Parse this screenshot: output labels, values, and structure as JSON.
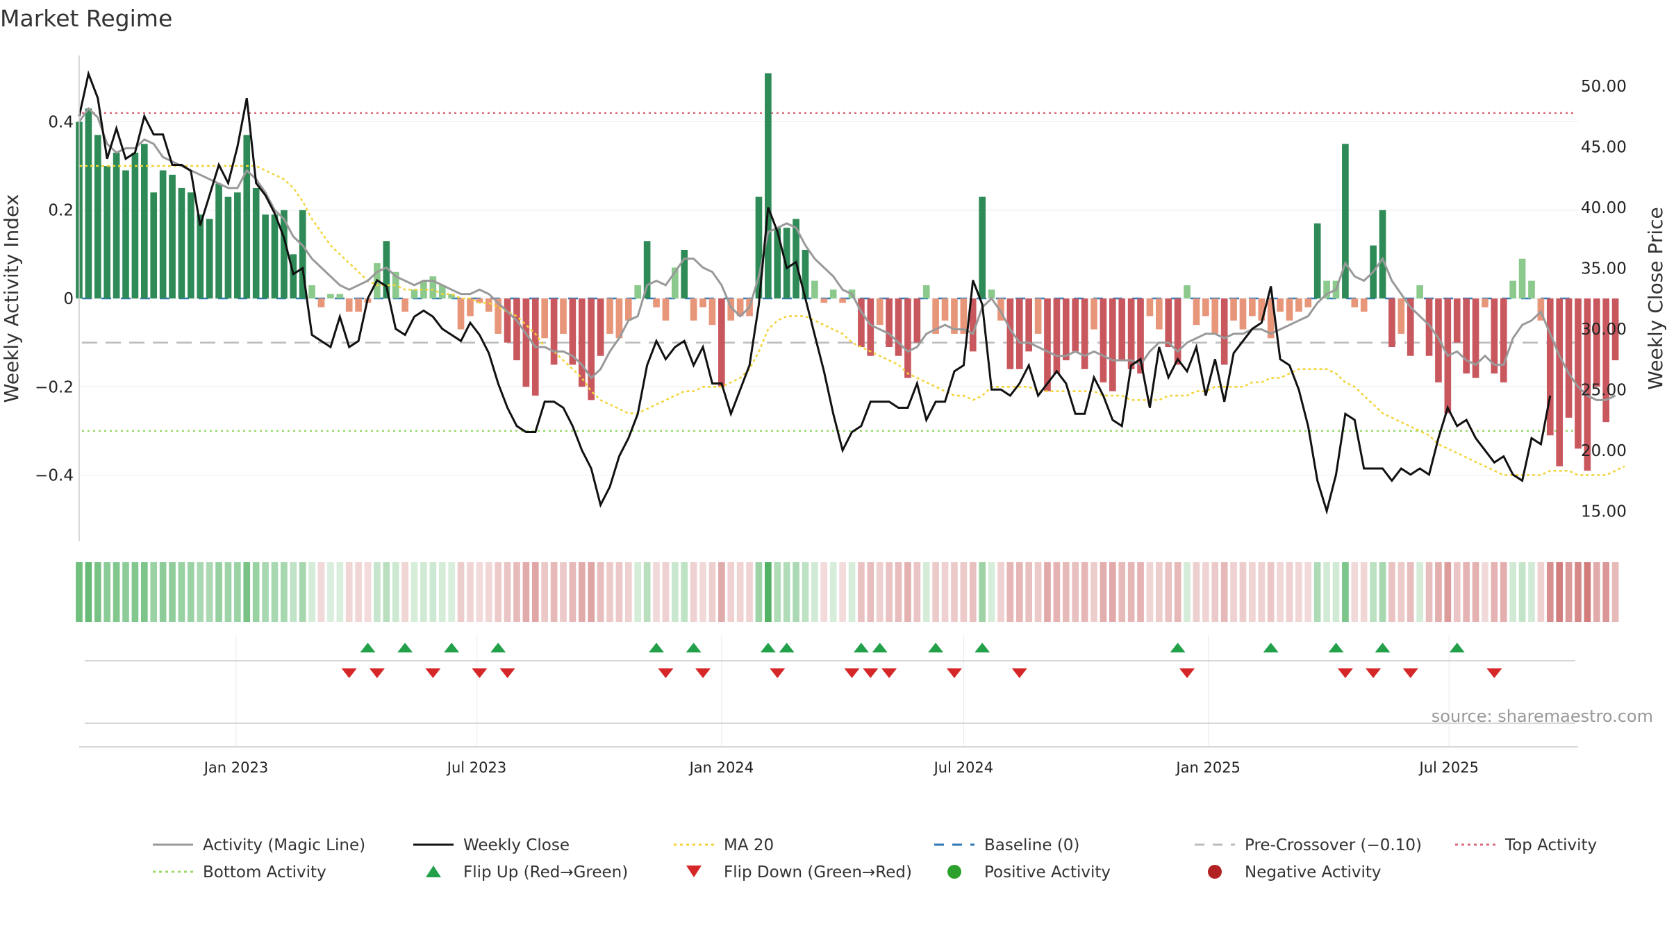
{
  "title": "Market Regime",
  "source": "source: sharemaestro.com",
  "colors": {
    "pos_strong": "#2e8b57",
    "pos_weak": "#8cc98c",
    "neg_strong": "#c9575e",
    "neg_weak": "#e8967a",
    "magic_line": "#999999",
    "close": "#111111",
    "ma20": "#f2d43a",
    "baseline": "#2f77b4",
    "precross": "#bbbbbb",
    "top": "#de6b7c",
    "bottom": "#9ad96b",
    "flip_up": "#22a04a",
    "flip_down": "#d62728",
    "pos_dot": "#2ca02c",
    "neg_dot": "#b22222"
  },
  "legend": [
    {
      "label": "Activity (Magic Line)",
      "style": "line",
      "color": "#999999"
    },
    {
      "label": "Weekly Close",
      "style": "line",
      "color": "#111111"
    },
    {
      "label": "MA 20",
      "style": "dotted",
      "color": "#f2d43a"
    },
    {
      "label": "Baseline (0)",
      "style": "dashed",
      "color": "#2f77b4"
    },
    {
      "label": "Pre-Crossover (−0.10)",
      "style": "dashed",
      "color": "#bbbbbb"
    },
    {
      "label": "Top Activity",
      "style": "dotted",
      "color": "#de6b7c"
    },
    {
      "label": "Bottom Activity",
      "style": "dotted",
      "color": "#9ad96b"
    },
    {
      "label": "Flip Up (Red→Green)",
      "style": "tri-up",
      "color": "#22a04a"
    },
    {
      "label": "Flip Down (Green→Red)",
      "style": "tri-down",
      "color": "#d62728"
    },
    {
      "label": "Positive Activity",
      "style": "dot",
      "color": "#2ca02c"
    },
    {
      "label": "Negative Activity",
      "style": "dot",
      "color": "#b22222"
    }
  ],
  "chart_data": {
    "type": "bar",
    "title": "Market Regime",
    "xlabel": "",
    "ylabel": "Weekly Activity Index",
    "y2label": "Weekly Close Price",
    "ylim": [
      -0.55,
      0.55
    ],
    "y2lim": [
      12.5,
      52.5
    ],
    "yticks": [
      {
        "v": 0.4,
        "label": "0.4"
      },
      {
        "v": 0.2,
        "label": "0.2"
      },
      {
        "v": 0,
        "label": "0"
      },
      {
        "v": -0.2,
        "label": "−0.2"
      },
      {
        "v": -0.4,
        "label": "−0.4"
      }
    ],
    "y2ticks": [
      "50.00",
      "45.00",
      "40.00",
      "35.00",
      "30.00",
      "25.00",
      "20.00",
      "15.00"
    ],
    "x_start": "2022-09-05",
    "x_end": "2025-10-06",
    "xticks": [
      {
        "date": "2023-01-01",
        "label": "Jan 2023"
      },
      {
        "date": "2023-07-01",
        "label": "Jul 2023"
      },
      {
        "date": "2024-01-01",
        "label": "Jan 2024"
      },
      {
        "date": "2024-07-01",
        "label": "Jul 2024"
      },
      {
        "date": "2025-01-01",
        "label": "Jan 2025"
      },
      {
        "date": "2025-07-01",
        "label": "Jul 2025"
      }
    ],
    "first_week": "2022-09-05",
    "week_step_days": 7,
    "grid": true,
    "legend_position": "bottom",
    "activity": [
      0.4,
      0.43,
      0.37,
      0.3,
      0.33,
      0.29,
      0.33,
      0.35,
      0.24,
      0.29,
      0.28,
      0.25,
      0.24,
      0.19,
      0.18,
      0.26,
      0.23,
      0.24,
      0.37,
      0.25,
      0.19,
      0.19,
      0.2,
      0.1,
      0.2,
      0.03,
      -0.02,
      0.01,
      0.01,
      -0.03,
      -0.03,
      -0.01,
      0.08,
      0.13,
      0.06,
      -0.03,
      0.02,
      0.04,
      0.05,
      0.03,
      0.01,
      -0.07,
      -0.04,
      -0.01,
      -0.03,
      -0.08,
      -0.1,
      -0.14,
      -0.2,
      -0.22,
      -0.09,
      -0.15,
      -0.08,
      -0.15,
      -0.2,
      -0.23,
      -0.13,
      -0.08,
      -0.09,
      -0.05,
      0.03,
      0.13,
      -0.02,
      -0.05,
      0.07,
      0.11,
      -0.05,
      -0.02,
      -0.06,
      -0.2,
      -0.05,
      -0.04,
      -0.04,
      0.23,
      0.51,
      0.16,
      0.16,
      0.18,
      0.11,
      0.04,
      -0.01,
      0.02,
      -0.01,
      0.02,
      -0.11,
      -0.13,
      -0.06,
      -0.11,
      -0.13,
      -0.18,
      -0.1,
      0.03,
      -0.08,
      -0.05,
      -0.08,
      -0.08,
      -0.12,
      0.23,
      0.02,
      -0.05,
      -0.16,
      -0.16,
      -0.12,
      -0.08,
      -0.21,
      -0.17,
      -0.14,
      -0.12,
      -0.16,
      -0.07,
      -0.19,
      -0.21,
      -0.14,
      -0.16,
      -0.17,
      -0.04,
      -0.07,
      -0.11,
      -0.15,
      0.03,
      -0.06,
      -0.04,
      -0.08,
      -0.15,
      -0.05,
      -0.07,
      -0.04,
      -0.05,
      -0.09,
      -0.03,
      -0.05,
      -0.03,
      -0.02,
      0.17,
      0.04,
      0.04,
      0.35,
      -0.02,
      -0.03,
      0.12,
      0.2,
      -0.11,
      -0.08,
      -0.13,
      0.03,
      -0.13,
      -0.19,
      -0.26,
      -0.1,
      -0.17,
      -0.18,
      -0.02,
      -0.17,
      -0.19,
      0.04,
      0.09,
      0.04,
      -0.05,
      -0.31,
      -0.38,
      -0.27,
      -0.34,
      -0.39,
      -0.2,
      -0.28,
      -0.14
    ],
    "close": [
      47.5,
      51,
      49,
      44,
      46.5,
      44,
      44.5,
      47.5,
      46,
      46,
      43.5,
      43.5,
      43,
      38.5,
      41,
      43.5,
      42,
      45,
      49,
      42,
      41,
      39.5,
      37.5,
      34.5,
      35,
      29.5,
      29,
      28.5,
      31,
      28.5,
      29,
      32.5,
      34,
      33.5,
      30,
      29.5,
      31,
      31.5,
      31,
      30,
      29.5,
      29,
      30.5,
      29.5,
      28,
      25.5,
      23.5,
      22,
      21.5,
      21.5,
      24,
      24,
      23.5,
      22,
      20,
      18.5,
      15.5,
      17,
      19.5,
      21,
      23,
      27,
      29,
      27.5,
      28.5,
      29,
      27,
      28.5,
      25.5,
      25.5,
      23,
      25,
      27,
      32,
      40,
      38,
      35,
      35.5,
      32.5,
      29.5,
      26.5,
      23,
      20,
      21.5,
      22,
      24,
      24,
      24,
      23.5,
      23.5,
      25.5,
      22.5,
      24,
      24,
      26.5,
      27,
      34,
      32,
      25,
      25,
      24.5,
      25.5,
      27,
      24.5,
      25.5,
      26.5,
      25.5,
      23,
      23,
      26,
      24.5,
      22.5,
      22,
      27,
      27.5,
      23.5,
      28.5,
      26,
      27.5,
      26.5,
      28.5,
      24.5,
      27.5,
      24,
      28,
      29,
      30,
      30.5,
      33.5,
      27.5,
      27,
      25,
      22,
      17.5,
      15,
      18,
      23,
      22.5,
      18.5,
      18.5,
      18.5,
      17.5,
      18.5,
      18,
      18.5,
      18,
      21,
      23.5,
      22,
      22.5,
      21,
      20,
      19,
      19.5,
      18,
      17.5,
      21,
      20.5,
      24.5
    ],
    "magic_line": [
      0.4,
      0.43,
      0.41,
      0.35,
      0.33,
      0.34,
      0.34,
      0.36,
      0.35,
      0.32,
      0.31,
      0.3,
      0.29,
      0.28,
      0.27,
      0.26,
      0.25,
      0.25,
      0.29,
      0.27,
      0.24,
      0.2,
      0.18,
      0.14,
      0.12,
      0.09,
      0.07,
      0.05,
      0.03,
      0.02,
      0.03,
      0.04,
      0.06,
      0.07,
      0.05,
      0.04,
      0.03,
      0.04,
      0.04,
      0.03,
      0.02,
      0.01,
      0.01,
      0.02,
      0.01,
      -0.01,
      -0.03,
      -0.05,
      -0.08,
      -0.11,
      -0.11,
      -0.12,
      -0.12,
      -0.13,
      -0.15,
      -0.18,
      -0.16,
      -0.12,
      -0.09,
      -0.05,
      -0.04,
      0.03,
      0.04,
      0.03,
      0.06,
      0.09,
      0.09,
      0.07,
      0.06,
      0.03,
      -0.02,
      -0.04,
      -0.02,
      0.05,
      0.15,
      0.16,
      0.17,
      0.16,
      0.12,
      0.09,
      0.07,
      0.05,
      0.02,
      0.01,
      -0.03,
      -0.06,
      -0.07,
      -0.08,
      -0.1,
      -0.12,
      -0.11,
      -0.08,
      -0.07,
      -0.06,
      -0.07,
      -0.07,
      -0.08,
      -0.02,
      0.0,
      -0.03,
      -0.07,
      -0.1,
      -0.1,
      -0.11,
      -0.12,
      -0.13,
      -0.13,
      -0.12,
      -0.13,
      -0.12,
      -0.13,
      -0.14,
      -0.14,
      -0.14,
      -0.15,
      -0.12,
      -0.1,
      -0.1,
      -0.12,
      -0.1,
      -0.09,
      -0.08,
      -0.08,
      -0.09,
      -0.08,
      -0.08,
      -0.07,
      -0.07,
      -0.08,
      -0.07,
      -0.06,
      -0.05,
      -0.04,
      -0.01,
      0.01,
      0.02,
      0.08,
      0.05,
      0.04,
      0.06,
      0.09,
      0.04,
      0.01,
      -0.02,
      -0.04,
      -0.06,
      -0.09,
      -0.13,
      -0.12,
      -0.14,
      -0.15,
      -0.13,
      -0.15,
      -0.15,
      -0.09,
      -0.06,
      -0.05,
      -0.03,
      -0.08,
      -0.13,
      -0.17,
      -0.2,
      -0.22,
      -0.23,
      -0.23,
      -0.22
    ],
    "ma20": [
      0.3,
      0.3,
      0.3,
      0.3,
      0.3,
      0.3,
      0.3,
      0.3,
      0.3,
      0.3,
      0.3,
      0.3,
      0.3,
      0.3,
      0.3,
      0.3,
      0.3,
      0.3,
      0.3,
      0.3,
      0.29,
      0.28,
      0.27,
      0.25,
      0.22,
      0.18,
      0.15,
      0.12,
      0.1,
      0.08,
      0.06,
      0.04,
      0.03,
      0.03,
      0.03,
      0.02,
      0.02,
      0.02,
      0.02,
      0.01,
      0.01,
      0.0,
      0.0,
      -0.01,
      -0.01,
      -0.02,
      -0.03,
      -0.04,
      -0.06,
      -0.08,
      -0.11,
      -0.12,
      -0.14,
      -0.16,
      -0.18,
      -0.21,
      -0.23,
      -0.24,
      -0.25,
      -0.26,
      -0.26,
      -0.25,
      -0.24,
      -0.23,
      -0.22,
      -0.21,
      -0.21,
      -0.2,
      -0.2,
      -0.2,
      -0.19,
      -0.18,
      -0.16,
      -0.12,
      -0.07,
      -0.05,
      -0.04,
      -0.04,
      -0.04,
      -0.05,
      -0.06,
      -0.07,
      -0.08,
      -0.1,
      -0.11,
      -0.12,
      -0.13,
      -0.14,
      -0.15,
      -0.17,
      -0.18,
      -0.19,
      -0.2,
      -0.21,
      -0.22,
      -0.22,
      -0.23,
      -0.22,
      -0.2,
      -0.2,
      -0.2,
      -0.2,
      -0.2,
      -0.21,
      -0.21,
      -0.21,
      -0.21,
      -0.21,
      -0.21,
      -0.21,
      -0.22,
      -0.22,
      -0.22,
      -0.23,
      -0.23,
      -0.23,
      -0.23,
      -0.22,
      -0.22,
      -0.22,
      -0.21,
      -0.21,
      -0.2,
      -0.2,
      -0.2,
      -0.2,
      -0.19,
      -0.19,
      -0.18,
      -0.18,
      -0.17,
      -0.16,
      -0.16,
      -0.16,
      -0.16,
      -0.17,
      -0.19,
      -0.2,
      -0.22,
      -0.24,
      -0.26,
      -0.27,
      -0.28,
      -0.29,
      -0.3,
      -0.31,
      -0.33,
      -0.34,
      -0.35,
      -0.36,
      -0.37,
      -0.38,
      -0.39,
      -0.4,
      -0.4,
      -0.4,
      -0.4,
      -0.4,
      -0.39,
      -0.39,
      -0.39,
      -0.4,
      -0.4,
      -0.4,
      -0.4,
      -0.39,
      -0.38
    ],
    "baseline": 0,
    "pre_crossover": -0.1,
    "top_activity": 0.42,
    "bottom_activity": -0.3,
    "flip_up_dates": [
      "2023-04-10",
      "2023-05-08",
      "2023-06-12",
      "2023-07-17",
      "2023-11-13",
      "2023-12-11",
      "2024-02-05",
      "2024-02-19",
      "2024-04-15",
      "2024-04-29",
      "2024-06-10",
      "2024-07-15",
      "2024-12-09",
      "2025-02-17",
      "2025-04-07",
      "2025-05-12",
      "2025-07-07"
    ],
    "flip_down_dates": [
      "2023-03-27",
      "2023-04-17",
      "2023-05-29",
      "2023-07-03",
      "2023-07-24",
      "2023-11-20",
      "2023-12-18",
      "2024-02-12",
      "2024-04-08",
      "2024-04-22",
      "2024-05-06",
      "2024-06-24",
      "2024-08-12",
      "2024-12-16",
      "2025-04-14",
      "2025-05-05",
      "2025-06-02",
      "2025-08-04"
    ]
  }
}
